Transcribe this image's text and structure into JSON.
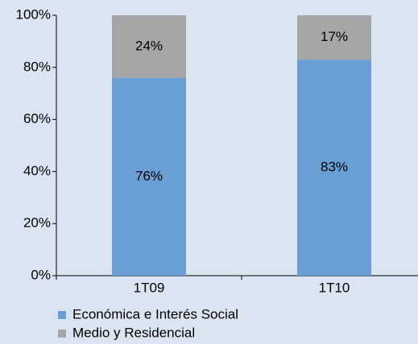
{
  "chart_data": {
    "type": "stacked_bar",
    "categories": [
      "1T09",
      "1T10"
    ],
    "series": [
      {
        "name": "Económica e Interés Social",
        "color": "#6a9fd5",
        "values": [
          76,
          83
        ],
        "value_labels": [
          "76%",
          "83%"
        ]
      },
      {
        "name": "Medio y Residencial",
        "color": "#a6a6a6",
        "values": [
          24,
          17
        ],
        "value_labels": [
          "24%",
          "17%"
        ]
      }
    ],
    "ylim": [
      0,
      100
    ],
    "yticks": [
      {
        "value": 0,
        "label": "0%"
      },
      {
        "value": 20,
        "label": "20%"
      },
      {
        "value": 40,
        "label": "40%"
      },
      {
        "value": 60,
        "label": "60%"
      },
      {
        "value": 80,
        "label": "80%"
      },
      {
        "value": 100,
        "label": "100%"
      }
    ],
    "legend": "bottom-left"
  }
}
